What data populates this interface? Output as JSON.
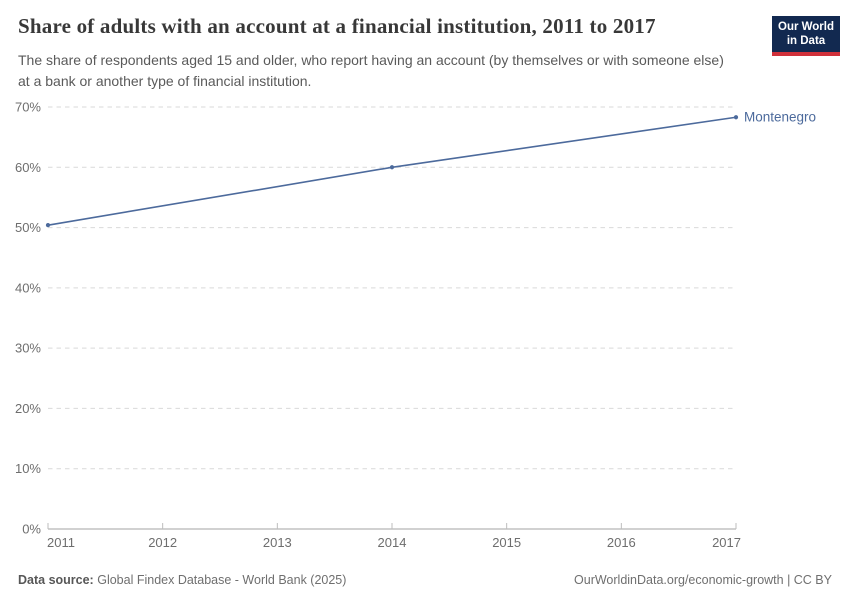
{
  "chart_data": {
    "type": "line",
    "title": "Share of adults with an account at a financial institution, 2011 to 2017",
    "subtitle": "The share of respondents aged 15 and older, who report having an account (by themselves or with someone else) at a bank or another type of financial institution.",
    "x": [
      2011,
      2014,
      2017
    ],
    "series": [
      {
        "name": "Montenegro",
        "values": [
          50.4,
          60.0,
          68.3
        ],
        "color": "#4c6a9c"
      }
    ],
    "xlim": [
      2011,
      2017
    ],
    "ylim": [
      0,
      70
    ],
    "x_ticks": [
      2011,
      2012,
      2013,
      2014,
      2015,
      2016,
      2017
    ],
    "y_ticks": [
      0,
      10,
      20,
      30,
      40,
      50,
      60,
      70
    ],
    "y_tick_suffix": "%",
    "xlabel": "",
    "ylabel": "",
    "grid": "horizontal-dashed",
    "legend_position": "line-end-label"
  },
  "logo": {
    "line1": "Our World",
    "line2": "in Data"
  },
  "footer": {
    "source_label": "Data source:",
    "source_value": "Global Findex Database - World Bank (2025)",
    "credit": "OurWorldinData.org/economic-growth | CC BY"
  },
  "colors": {
    "grid": "#d9d9d9",
    "axis": "#a3a3a3",
    "tick_mark": "#bdbdbd",
    "tick_text": "#6e6e6e",
    "title": "#383838",
    "subtitle": "#5a5a5a",
    "logo_bg": "#122950",
    "logo_stripe": "#d0303a"
  }
}
